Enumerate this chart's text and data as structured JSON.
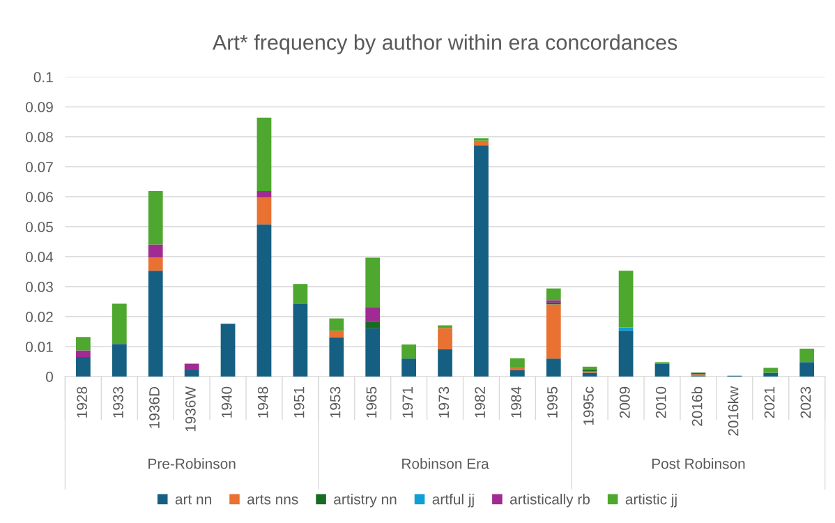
{
  "chart_data": {
    "type": "bar",
    "title": "Art* frequency by author within era concordances",
    "stacked": true,
    "categories": [
      "1928",
      "1933",
      "1936D",
      "1936W",
      "1940",
      "1948",
      "1951",
      "1953",
      "1965",
      "1971",
      "1973",
      "1982",
      "1984",
      "1995",
      "1995c",
      "2009",
      "2010",
      "2016b",
      "2016kw",
      "2021",
      "2023"
    ],
    "series": [
      {
        "name": "art nn",
        "color": "#156082",
        "values": [
          0.0065,
          0.0109,
          0.0353,
          0.0021,
          0.0176,
          0.0508,
          0.0242,
          0.0131,
          0.0161,
          0.006,
          0.0091,
          0.0772,
          0.0021,
          0.006,
          0.0013,
          0.0153,
          0.0042,
          0.0002,
          0.0003,
          0.0013,
          0.0048
        ]
      },
      {
        "name": "arts nns",
        "color": "#e97132",
        "values": [
          null,
          null,
          0.0045,
          null,
          null,
          0.0089,
          null,
          0.0022,
          null,
          null,
          0.0071,
          0.0015,
          0.0009,
          0.0181,
          0.0004,
          null,
          null,
          0.0006,
          null,
          null,
          null
        ]
      },
      {
        "name": "artistry nn",
        "color": "#196b24",
        "values": [
          null,
          null,
          null,
          null,
          null,
          null,
          null,
          null,
          0.0024,
          null,
          null,
          null,
          null,
          0.0006,
          0.0006,
          null,
          null,
          0.0005,
          null,
          null,
          null
        ]
      },
      {
        "name": "artful jj",
        "color": "#0f9ed5",
        "values": [
          null,
          null,
          null,
          null,
          null,
          null,
          null,
          null,
          null,
          null,
          null,
          null,
          null,
          null,
          null,
          0.0011,
          null,
          null,
          null,
          null,
          null
        ]
      },
      {
        "name": "artistically rb",
        "color": "#a02b93",
        "values": [
          0.0022,
          null,
          0.0043,
          0.0022,
          null,
          0.0022,
          null,
          null,
          0.0047,
          null,
          null,
          null,
          null,
          0.0008,
          null,
          null,
          null,
          null,
          null,
          null,
          null
        ]
      },
      {
        "name": "artistic jj",
        "color": "#4ea72e",
        "values": [
          0.0045,
          0.0134,
          0.0178,
          null,
          null,
          0.0245,
          0.0067,
          0.0041,
          0.0165,
          0.0047,
          0.0009,
          0.0008,
          0.0031,
          0.0039,
          0.001,
          0.0189,
          0.0006,
          null,
          null,
          0.0016,
          0.0045
        ]
      }
    ],
    "annotations": [
      "Pre-Robinson",
      "Robinson Era",
      "Post Robinson"
    ],
    "ylim": [
      0,
      0.1
    ],
    "yticks": [
      0,
      0.01,
      0.02,
      0.03,
      0.04,
      0.05,
      0.06,
      0.07,
      0.08,
      0.09,
      0.1
    ],
    "grid": "y",
    "legend": "bottom"
  }
}
